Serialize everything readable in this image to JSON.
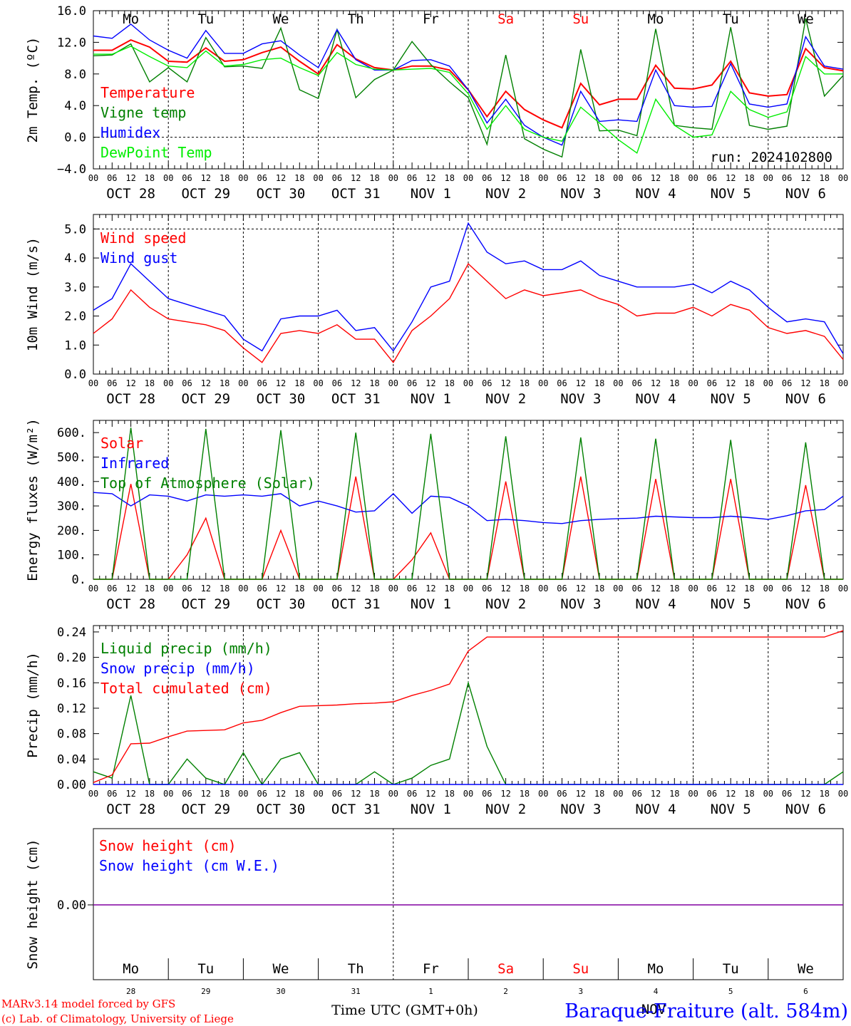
{
  "chart_data": [
    {
      "type": "line",
      "ylabel": "2m Temp. (ºC)",
      "ylim": [
        -4,
        16
      ],
      "yticks": [
        -4,
        0,
        4,
        8,
        12,
        16
      ],
      "ytick_labels": [
        "−4.0",
        "0.0",
        "4.0",
        "8.0",
        "12.0",
        "16.0"
      ],
      "dashed_y": [
        0,
        16
      ],
      "annotation": "run: 2024102800",
      "x_hours": [
        0,
        6,
        12,
        18,
        24,
        30,
        36,
        42,
        48,
        54,
        60,
        66,
        72,
        78,
        84,
        90,
        96,
        102,
        108,
        114,
        120,
        126,
        132,
        138,
        144,
        150,
        156,
        162,
        168,
        174,
        180,
        186,
        192,
        198,
        204,
        210,
        216,
        222,
        228,
        234,
        240
      ],
      "series": [
        {
          "name": "Temperature",
          "color": "#ff0000",
          "values": [
            11.0,
            11.0,
            12.3,
            11.4,
            9.6,
            9.5,
            11.3,
            9.6,
            9.8,
            10.7,
            11.4,
            9.6,
            8.0,
            11.7,
            9.9,
            8.8,
            8.5,
            9.0,
            9.0,
            8.5,
            6.0,
            2.6,
            5.8,
            3.5,
            2.2,
            1.2,
            6.8,
            4.1,
            4.8,
            4.8,
            9.1,
            6.2,
            6.1,
            6.6,
            9.6,
            5.6,
            5.2,
            5.4,
            11.2,
            8.8,
            8.4
          ]
        },
        {
          "name": "Vigne temp",
          "color": "#008000",
          "values": [
            10.3,
            10.4,
            11.8,
            7.0,
            8.8,
            7.0,
            12.6,
            8.9,
            9.0,
            8.7,
            13.8,
            6.0,
            4.9,
            13.6,
            5.0,
            7.3,
            8.5,
            12.1,
            9.2,
            7.0,
            5.0,
            -0.9,
            10.4,
            -0.2,
            -1.5,
            -2.5,
            11.1,
            0.8,
            0.9,
            0.2,
            13.7,
            1.5,
            1.2,
            1.0,
            13.9,
            1.5,
            1.0,
            1.4,
            15.0,
            5.2,
            7.8
          ]
        },
        {
          "name": "Humidex",
          "color": "#0000ff",
          "values": [
            12.8,
            12.5,
            14.3,
            12.3,
            11.0,
            10.0,
            13.5,
            10.6,
            10.6,
            11.8,
            12.2,
            10.4,
            8.8,
            13.6,
            9.8,
            8.5,
            8.5,
            9.7,
            9.8,
            9.0,
            6.0,
            1.8,
            4.8,
            1.5,
            0.0,
            -1.0,
            5.8,
            2.0,
            2.2,
            2.0,
            8.5,
            4.0,
            3.8,
            3.9,
            9.3,
            4.2,
            3.8,
            4.2,
            12.7,
            9.0,
            8.6
          ]
        },
        {
          "name": "DewPoint Temp",
          "color": "#00ee00",
          "values": [
            10.5,
            10.5,
            11.5,
            10.2,
            9.0,
            8.8,
            10.9,
            9.0,
            9.2,
            9.8,
            10.0,
            8.8,
            7.8,
            10.7,
            9.2,
            8.6,
            8.5,
            8.6,
            8.7,
            8.2,
            5.5,
            1.0,
            4.0,
            1.0,
            0.0,
            -0.5,
            3.8,
            1.8,
            -0.3,
            -2.0,
            4.8,
            1.5,
            0.0,
            0.3,
            5.8,
            3.5,
            2.5,
            3.2,
            10.2,
            8.0,
            8.0
          ]
        }
      ]
    },
    {
      "type": "line",
      "ylabel": "10m Wind (m/s)",
      "ylim": [
        0,
        5.5
      ],
      "yticks": [
        0,
        1,
        2,
        3,
        4,
        5
      ],
      "ytick_labels": [
        "0.0",
        "1.0",
        "2.0",
        "3.0",
        "4.0",
        "5.0"
      ],
      "dashed_y": [
        5
      ],
      "x_hours": [
        0,
        6,
        12,
        18,
        24,
        30,
        36,
        42,
        48,
        54,
        60,
        66,
        72,
        78,
        84,
        90,
        96,
        102,
        108,
        114,
        120,
        126,
        132,
        138,
        144,
        150,
        156,
        162,
        168,
        174,
        180,
        186,
        192,
        198,
        204,
        210,
        216,
        222,
        228,
        234,
        240
      ],
      "series": [
        {
          "name": "Wind speed",
          "color": "#ff0000",
          "values": [
            1.4,
            1.9,
            2.9,
            2.3,
            1.9,
            1.8,
            1.7,
            1.5,
            0.9,
            0.4,
            1.4,
            1.5,
            1.4,
            1.7,
            1.2,
            1.2,
            0.4,
            1.5,
            2.0,
            2.6,
            3.8,
            3.2,
            2.6,
            2.9,
            2.7,
            2.8,
            2.9,
            2.6,
            2.4,
            2.0,
            2.1,
            2.1,
            2.3,
            2.0,
            2.4,
            2.2,
            1.6,
            1.4,
            1.5,
            1.3,
            0.5
          ]
        },
        {
          "name": "Wind gust",
          "color": "#0000ff",
          "values": [
            2.2,
            2.6,
            3.8,
            3.2,
            2.6,
            2.4,
            2.2,
            2.0,
            1.2,
            0.8,
            1.9,
            2.0,
            2.0,
            2.2,
            1.5,
            1.6,
            0.8,
            1.8,
            3.0,
            3.2,
            5.2,
            4.2,
            3.8,
            3.9,
            3.6,
            3.6,
            3.9,
            3.4,
            3.2,
            3.0,
            3.0,
            3.0,
            3.1,
            2.8,
            3.2,
            2.9,
            2.3,
            1.8,
            1.9,
            1.8,
            0.7
          ]
        }
      ]
    },
    {
      "type": "line",
      "ylabel": "Energy fluxes (W/m²)",
      "ylim": [
        0,
        650
      ],
      "yticks": [
        0,
        100,
        200,
        300,
        400,
        500,
        600
      ],
      "ytick_labels": [
        "0.",
        "100.",
        "200.",
        "300.",
        "400.",
        "500.",
        "600."
      ],
      "x_hours": [
        0,
        6,
        12,
        18,
        24,
        30,
        36,
        42,
        48,
        54,
        60,
        66,
        72,
        78,
        84,
        90,
        96,
        102,
        108,
        114,
        120,
        126,
        132,
        138,
        144,
        150,
        156,
        162,
        168,
        174,
        180,
        186,
        192,
        198,
        204,
        210,
        216,
        222,
        228,
        234,
        240
      ],
      "series": [
        {
          "name": "Solar",
          "color": "#ff0000",
          "values": [
            0,
            0,
            390,
            0,
            0,
            100,
            250,
            0,
            0,
            0,
            200,
            0,
            0,
            0,
            420,
            0,
            0,
            80,
            190,
            0,
            0,
            0,
            400,
            0,
            0,
            0,
            420,
            0,
            0,
            0,
            410,
            0,
            0,
            0,
            410,
            0,
            0,
            0,
            385,
            0,
            0
          ]
        },
        {
          "name": "Infrared",
          "color": "#0000ff",
          "values": [
            355,
            350,
            300,
            345,
            340,
            320,
            345,
            340,
            345,
            340,
            350,
            300,
            320,
            300,
            275,
            280,
            350,
            270,
            340,
            335,
            300,
            240,
            245,
            240,
            232,
            228,
            240,
            245,
            248,
            250,
            258,
            255,
            252,
            252,
            258,
            252,
            245,
            260,
            280,
            285,
            340
          ]
        },
        {
          "name": "Top of Atmosphere (Solar)",
          "color": "#008000",
          "values": [
            0,
            0,
            620,
            0,
            0,
            0,
            615,
            0,
            0,
            0,
            610,
            0,
            0,
            0,
            600,
            0,
            0,
            0,
            595,
            0,
            0,
            0,
            585,
            0,
            0,
            0,
            580,
            0,
            0,
            0,
            575,
            0,
            0,
            0,
            570,
            0,
            0,
            0,
            560,
            0,
            0
          ]
        }
      ]
    },
    {
      "type": "line",
      "ylabel": "Precip (mm/h)",
      "ylim": [
        0,
        0.25
      ],
      "yticks": [
        0,
        0.04,
        0.08,
        0.12,
        0.16,
        0.2,
        0.24
      ],
      "ytick_labels": [
        "0.00",
        "0.04",
        "0.08",
        "0.12",
        "0.16",
        "0.20",
        "0.24"
      ],
      "x_hours": [
        0,
        6,
        12,
        18,
        24,
        30,
        36,
        42,
        48,
        54,
        60,
        66,
        72,
        78,
        84,
        90,
        96,
        102,
        108,
        114,
        120,
        126,
        132,
        138,
        144,
        150,
        156,
        162,
        168,
        174,
        180,
        186,
        192,
        198,
        204,
        210,
        216,
        222,
        228,
        234,
        240
      ],
      "series": [
        {
          "name": "Liquid precip (mm/h)",
          "color": "#008000",
          "values": [
            0.02,
            0.01,
            0.14,
            0,
            0,
            0.04,
            0.01,
            0,
            0.05,
            0,
            0.04,
            0.05,
            0,
            0,
            0,
            0.02,
            0,
            0.01,
            0.03,
            0.04,
            0.16,
            0.06,
            0,
            0,
            0,
            0,
            0,
            0,
            0,
            0,
            0,
            0,
            0,
            0,
            0,
            0,
            0,
            0,
            0,
            0,
            0.02
          ]
        },
        {
          "name": "Snow precip (mm/h)",
          "color": "#0000ff",
          "values": [
            0,
            0,
            0,
            0,
            0,
            0,
            0,
            0,
            0,
            0,
            0,
            0,
            0,
            0,
            0,
            0,
            0,
            0,
            0,
            0,
            0,
            0,
            0,
            0,
            0,
            0,
            0,
            0,
            0,
            0,
            0,
            0,
            0,
            0,
            0,
            0,
            0,
            0,
            0,
            0,
            0
          ]
        },
        {
          "name": "Total cumulated (cm)",
          "color": "#ff0000",
          "values": [
            0.003,
            0.015,
            0.064,
            0.065,
            0.075,
            0.084,
            0.085,
            0.086,
            0.097,
            0.101,
            0.113,
            0.123,
            0.124,
            0.125,
            0.127,
            0.128,
            0.13,
            0.14,
            0.148,
            0.158,
            0.21,
            0.232,
            0.232,
            0.232,
            0.232,
            0.232,
            0.232,
            0.232,
            0.232,
            0.232,
            0.232,
            0.232,
            0.232,
            0.232,
            0.232,
            0.232,
            0.232,
            0.232,
            0.232,
            0.232,
            0.242
          ]
        }
      ]
    },
    {
      "type": "line",
      "ylabel": "Snow height (cm)",
      "ytick_labels": [
        "0.00"
      ],
      "x_hours": [
        0,
        240
      ],
      "series": [
        {
          "name": "Snow height (cm)",
          "color": "#ff0000",
          "values": [
            0,
            0
          ]
        },
        {
          "name": "Snow height (cm W.E.)",
          "color": "#0000ff",
          "values": [
            0,
            0
          ]
        }
      ]
    }
  ],
  "axis": {
    "hour_labels": [
      "00",
      "06",
      "12",
      "18"
    ],
    "end_label": "00",
    "date_labels": [
      "OCT 28",
      "OCT 29",
      "OCT 30",
      "OCT 31",
      "NOV  1",
      "NOV  2",
      "NOV  3",
      "NOV  4",
      "NOV  5",
      "NOV  6"
    ],
    "weekdays": [
      "Mo",
      "Tu",
      "We",
      "Th",
      "Fr",
      "Sa",
      "Su",
      "Mo",
      "Tu",
      "We"
    ],
    "weekend_flags": [
      false,
      false,
      false,
      false,
      false,
      true,
      true,
      false,
      false,
      false
    ],
    "day_numbers": [
      "28",
      "29",
      "30",
      "31",
      "1",
      "2",
      "3",
      "4",
      "5",
      "6"
    ],
    "month_label": "NOV",
    "time_label": "Time UTC (GMT+0h)"
  },
  "footer": {
    "credit_line1": "MARv3.14 model forced by GFS",
    "credit_line2": "(c) Lab. of Climatology, University of Liege",
    "station": "Baraque-Fraiture (alt. 584m)"
  },
  "colors": {
    "red": "#ff0000",
    "green": "#008000",
    "blue": "#0000ff",
    "lightgreen": "#00ee00",
    "purple": "#8000a0"
  }
}
